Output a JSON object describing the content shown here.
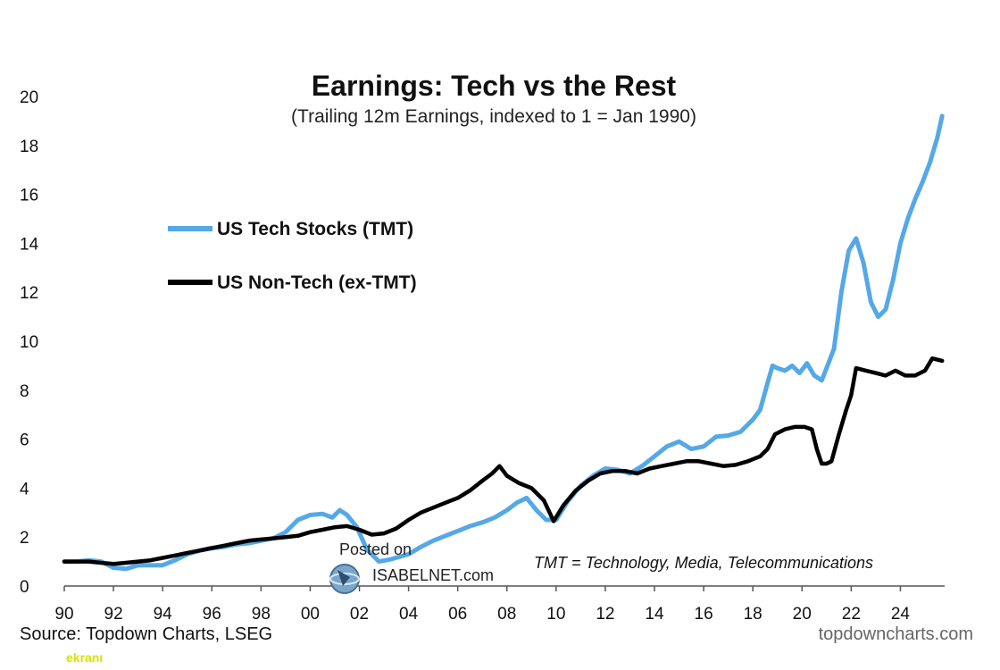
{
  "chart_data": {
    "type": "line",
    "title": "Earnings: Tech vs the Rest",
    "subtitle": "(Trailing 12m Earnings, indexed to 1 = Jan 1990)",
    "xlabel": "",
    "ylabel": "",
    "xlim": [
      1990,
      2025.8
    ],
    "ylim": [
      0,
      20
    ],
    "x_ticks": [
      1990,
      1992,
      1994,
      1996,
      1998,
      2000,
      2002,
      2004,
      2006,
      2008,
      2010,
      2012,
      2014,
      2016,
      2018,
      2020,
      2022,
      2024
    ],
    "x_tick_labels": [
      "90",
      "92",
      "94",
      "96",
      "98",
      "00",
      "02",
      "04",
      "06",
      "08",
      "10",
      "12",
      "14",
      "16",
      "18",
      "20",
      "22",
      "24"
    ],
    "y_ticks": [
      0,
      2,
      4,
      6,
      8,
      10,
      12,
      14,
      16,
      18,
      20
    ],
    "y_tick_labels": [
      "0",
      "2",
      "4",
      "6",
      "8",
      "10",
      "12",
      "14",
      "16",
      "18",
      "20"
    ],
    "grid": false,
    "legend_position": "upper-left",
    "series": [
      {
        "name": "US Tech Stocks (TMT)",
        "color": "#55a8e8",
        "x": [
          1990.0,
          1990.5,
          1991.0,
          1991.5,
          1992.0,
          1992.5,
          1993.0,
          1993.5,
          1994.0,
          1994.5,
          1995.0,
          1995.5,
          1996.0,
          1996.5,
          1997.0,
          1997.5,
          1998.0,
          1998.5,
          1999.0,
          1999.5,
          2000.0,
          2000.5,
          2000.9,
          2001.2,
          2001.5,
          2001.9,
          2002.3,
          2002.8,
          2003.3,
          2004.0,
          2004.5,
          2005.0,
          2005.5,
          2006.0,
          2006.5,
          2007.0,
          2007.5,
          2008.0,
          2008.4,
          2008.8,
          2009.2,
          2009.6,
          2010.0,
          2010.5,
          2011.0,
          2011.5,
          2012.0,
          2012.5,
          2013.0,
          2013.5,
          2014.0,
          2014.5,
          2015.0,
          2015.5,
          2016.0,
          2016.5,
          2017.0,
          2017.5,
          2018.0,
          2018.3,
          2018.6,
          2018.8,
          2019.0,
          2019.3,
          2019.6,
          2019.9,
          2020.2,
          2020.5,
          2020.8,
          2021.0,
          2021.3,
          2021.6,
          2021.9,
          2022.2,
          2022.5,
          2022.8,
          2023.1,
          2023.4,
          2023.7,
          2024.0,
          2024.3,
          2024.6,
          2024.9,
          2025.2,
          2025.5,
          2025.7
        ],
        "values": [
          1.0,
          1.0,
          1.05,
          1.0,
          0.75,
          0.7,
          0.85,
          0.85,
          0.85,
          1.05,
          1.3,
          1.45,
          1.55,
          1.6,
          1.7,
          1.75,
          1.85,
          1.95,
          2.2,
          2.7,
          2.9,
          2.95,
          2.8,
          3.1,
          2.9,
          2.4,
          1.5,
          1.0,
          1.1,
          1.3,
          1.6,
          1.85,
          2.05,
          2.25,
          2.45,
          2.6,
          2.8,
          3.1,
          3.4,
          3.6,
          3.1,
          2.7,
          2.7,
          3.5,
          4.1,
          4.5,
          4.8,
          4.75,
          4.6,
          4.9,
          5.3,
          5.7,
          5.9,
          5.6,
          5.7,
          6.1,
          6.15,
          6.3,
          6.8,
          7.2,
          8.3,
          9.0,
          8.9,
          8.8,
          9.0,
          8.7,
          9.1,
          8.6,
          8.4,
          8.9,
          9.7,
          12.0,
          13.7,
          14.2,
          13.2,
          11.6,
          11.0,
          11.3,
          12.5,
          14.0,
          15.0,
          15.8,
          16.5,
          17.3,
          18.3,
          19.2
        ]
      },
      {
        "name": "US Non-Tech (ex-TMT)",
        "color": "#000000",
        "x": [
          1990.0,
          1990.5,
          1991.0,
          1991.5,
          1992.0,
          1992.5,
          1993.0,
          1993.5,
          1994.0,
          1994.5,
          1995.0,
          1995.5,
          1996.0,
          1996.5,
          1997.0,
          1997.5,
          1998.0,
          1998.5,
          1999.0,
          1999.5,
          2000.0,
          2000.5,
          2001.0,
          2001.5,
          2002.0,
          2002.5,
          2003.0,
          2003.5,
          2004.0,
          2004.5,
          2005.0,
          2005.5,
          2006.0,
          2006.5,
          2007.0,
          2007.4,
          2007.7,
          2008.0,
          2008.5,
          2009.0,
          2009.5,
          2009.9,
          2010.3,
          2010.8,
          2011.3,
          2011.8,
          2012.3,
          2012.8,
          2013.3,
          2013.8,
          2014.3,
          2014.8,
          2015.3,
          2015.8,
          2016.3,
          2016.8,
          2017.3,
          2017.8,
          2018.3,
          2018.6,
          2018.9,
          2019.3,
          2019.7,
          2020.1,
          2020.4,
          2020.6,
          2020.8,
          2021.0,
          2021.2,
          2021.5,
          2021.8,
          2022.0,
          2022.2,
          2022.6,
          2023.0,
          2023.4,
          2023.8,
          2024.2,
          2024.6,
          2025.0,
          2025.3,
          2025.7
        ],
        "values": [
          1.0,
          1.0,
          1.0,
          0.95,
          0.9,
          0.95,
          1.0,
          1.05,
          1.15,
          1.25,
          1.35,
          1.45,
          1.55,
          1.65,
          1.75,
          1.85,
          1.9,
          1.95,
          2.0,
          2.05,
          2.2,
          2.3,
          2.4,
          2.45,
          2.3,
          2.1,
          2.15,
          2.35,
          2.7,
          3.0,
          3.2,
          3.4,
          3.6,
          3.9,
          4.3,
          4.6,
          4.9,
          4.5,
          4.2,
          4.0,
          3.5,
          2.65,
          3.3,
          3.9,
          4.3,
          4.6,
          4.7,
          4.7,
          4.6,
          4.8,
          4.9,
          5.0,
          5.1,
          5.1,
          5.0,
          4.9,
          4.95,
          5.1,
          5.3,
          5.6,
          6.2,
          6.4,
          6.5,
          6.5,
          6.4,
          5.6,
          5.0,
          5.0,
          5.1,
          6.2,
          7.2,
          7.8,
          8.9,
          8.8,
          8.7,
          8.6,
          8.8,
          8.6,
          8.6,
          8.8,
          9.3,
          9.2
        ]
      }
    ],
    "annotations": {
      "note": "TMT = Technology, Media, Telecommunications",
      "source": "Source: Topdown Charts, LSEG",
      "site": "topdowncharts.com",
      "watermark_line1": "Posted on",
      "watermark_line2": "ISABELNET.com",
      "corner_text": "ekranı"
    }
  }
}
